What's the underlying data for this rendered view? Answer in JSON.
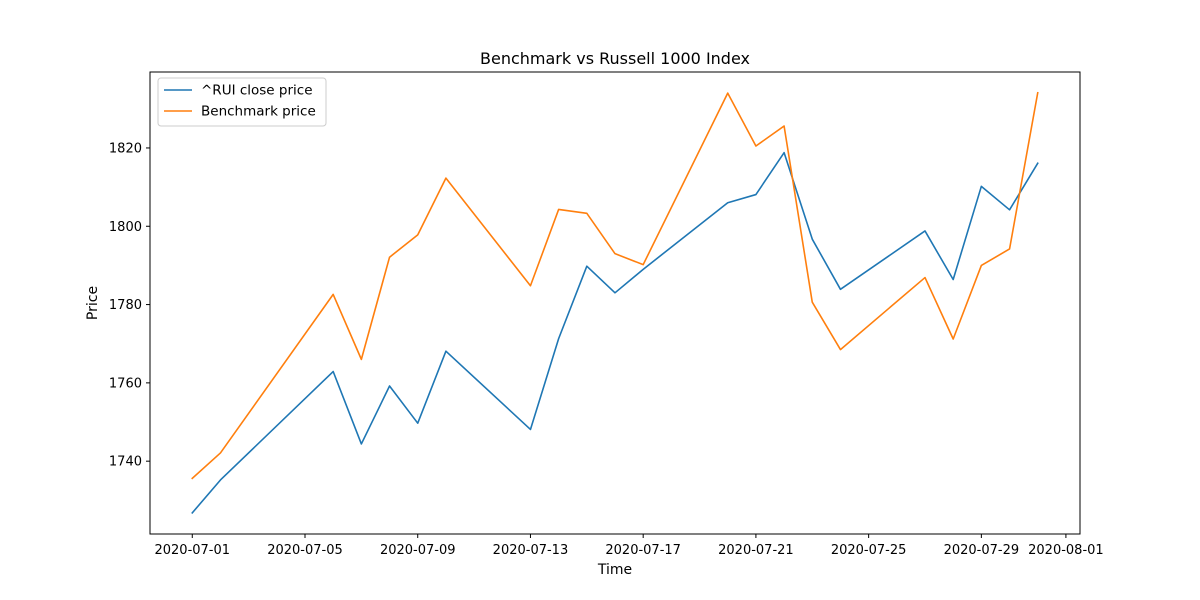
{
  "chart_data": {
    "type": "line",
    "title": "Benchmark vs Russell 1000 Index",
    "xlabel": "Time",
    "ylabel": "Price",
    "x": [
      "2020-07-01",
      "2020-07-02",
      "2020-07-06",
      "2020-07-07",
      "2020-07-08",
      "2020-07-09",
      "2020-07-10",
      "2020-07-13",
      "2020-07-14",
      "2020-07-15",
      "2020-07-16",
      "2020-07-17",
      "2020-07-20",
      "2020-07-21",
      "2020-07-22",
      "2020-07-23",
      "2020-07-24",
      "2020-07-27",
      "2020-07-28",
      "2020-07-29",
      "2020-07-30",
      "2020-07-31"
    ],
    "series": [
      {
        "name": "^RUI close price",
        "color": "#1f77b4",
        "values": [
          1726.8,
          1735.2,
          1762.9,
          1744.4,
          1759.2,
          1749.7,
          1768.1,
          1748.1,
          1771.3,
          1789.8,
          1783.0,
          1789.0,
          1806.0,
          1808.1,
          1818.8,
          1796.7,
          1783.9,
          1798.8,
          1786.4,
          1810.2,
          1804.2,
          1816.1
        ]
      },
      {
        "name": "Benchmark price",
        "color": "#ff7f0e",
        "values": [
          1735.6,
          1742.1,
          1782.6,
          1766.0,
          1792.1,
          1797.8,
          1812.3,
          1784.8,
          1804.3,
          1803.3,
          1793.0,
          1790.2,
          1834.0,
          1820.5,
          1825.6,
          1780.6,
          1768.5,
          1786.9,
          1771.2,
          1790.0,
          1794.2,
          1834.1
        ]
      }
    ],
    "xticks": [
      "2020-07-01",
      "2020-07-05",
      "2020-07-09",
      "2020-07-13",
      "2020-07-17",
      "2020-07-21",
      "2020-07-25",
      "2020-07-29",
      "2020-08-01"
    ],
    "yticks": [
      1740,
      1760,
      1780,
      1800,
      1820
    ],
    "xlim": [
      "2020-06-29T12:00",
      "2020-08-01T12:00"
    ],
    "ylim": [
      1721.4,
      1839.4
    ],
    "grid": false,
    "legend_position": "top-left"
  }
}
